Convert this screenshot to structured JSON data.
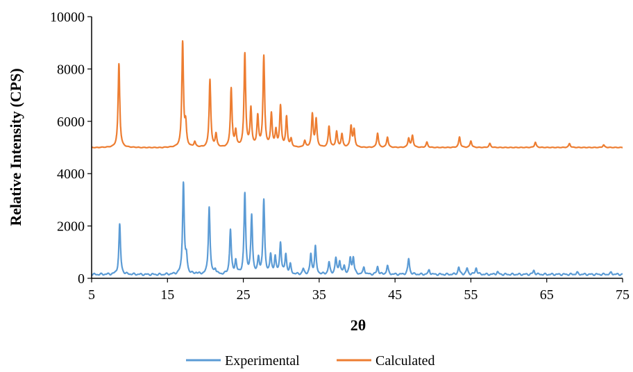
{
  "chart_data": {
    "type": "line",
    "title": "",
    "xlabel": "2θ",
    "ylabel": "Relative Intensity (CPS)",
    "xlim": [
      5,
      75
    ],
    "ylim": [
      0,
      10000
    ],
    "xticks": [
      5,
      15,
      25,
      35,
      45,
      55,
      65,
      75
    ],
    "yticks": [
      0,
      2000,
      4000,
      6000,
      8000,
      10000
    ],
    "ytick_labels": [
      "0",
      "2000",
      "4000",
      "6000",
      "8000",
      "10000"
    ],
    "grid": false,
    "legend_position": "bottom",
    "series": [
      {
        "name": "Experimental",
        "color": "#5b9bd5",
        "baseline": 150,
        "peaks": [
          [
            8.7,
            2050
          ],
          [
            17.1,
            3650
          ],
          [
            17.5,
            750
          ],
          [
            18.8,
            200
          ],
          [
            20.5,
            2750
          ],
          [
            21.3,
            350
          ],
          [
            23.3,
            1850
          ],
          [
            24.0,
            650
          ],
          [
            25.2,
            3200
          ],
          [
            26.1,
            2350
          ],
          [
            27.0,
            700
          ],
          [
            27.7,
            2950
          ],
          [
            28.6,
            850
          ],
          [
            29.2,
            800
          ],
          [
            29.9,
            1350
          ],
          [
            30.6,
            900
          ],
          [
            31.2,
            500
          ],
          [
            32.9,
            350
          ],
          [
            33.9,
            900
          ],
          [
            34.5,
            1200
          ],
          [
            36.3,
            600
          ],
          [
            37.2,
            750
          ],
          [
            37.7,
            650
          ],
          [
            38.3,
            450
          ],
          [
            39.1,
            750
          ],
          [
            39.5,
            780
          ],
          [
            40.9,
            420
          ],
          [
            42.7,
            450
          ],
          [
            44.0,
            480
          ],
          [
            46.8,
            750
          ],
          [
            49.5,
            320
          ],
          [
            53.4,
            420
          ],
          [
            54.5,
            380
          ],
          [
            55.7,
            400
          ],
          [
            58.5,
            250
          ],
          [
            63.3,
            300
          ],
          [
            69.0,
            220
          ],
          [
            73.5,
            220
          ]
        ]
      },
      {
        "name": "Calculated",
        "color": "#ed7d31",
        "baseline": 5000,
        "peaks": [
          [
            8.6,
            8200
          ],
          [
            17.0,
            9000
          ],
          [
            17.4,
            5800
          ],
          [
            18.6,
            5200
          ],
          [
            20.6,
            7600
          ],
          [
            21.4,
            5500
          ],
          [
            23.4,
            7250
          ],
          [
            24.0,
            5600
          ],
          [
            25.2,
            8550
          ],
          [
            26.0,
            6450
          ],
          [
            26.9,
            6150
          ],
          [
            27.7,
            8450
          ],
          [
            28.7,
            6250
          ],
          [
            29.3,
            5600
          ],
          [
            29.9,
            6550
          ],
          [
            30.7,
            6150
          ],
          [
            31.3,
            5300
          ],
          [
            33.1,
            5250
          ],
          [
            34.1,
            6250
          ],
          [
            34.6,
            6050
          ],
          [
            36.3,
            5800
          ],
          [
            37.3,
            5600
          ],
          [
            38.0,
            5500
          ],
          [
            39.2,
            5800
          ],
          [
            39.6,
            5650
          ],
          [
            42.7,
            5550
          ],
          [
            44.0,
            5400
          ],
          [
            46.8,
            5350
          ],
          [
            47.3,
            5450
          ],
          [
            49.2,
            5200
          ],
          [
            53.5,
            5400
          ],
          [
            55.0,
            5250
          ],
          [
            57.5,
            5150
          ],
          [
            63.5,
            5200
          ],
          [
            68.0,
            5150
          ],
          [
            72.5,
            5100
          ]
        ]
      }
    ]
  }
}
